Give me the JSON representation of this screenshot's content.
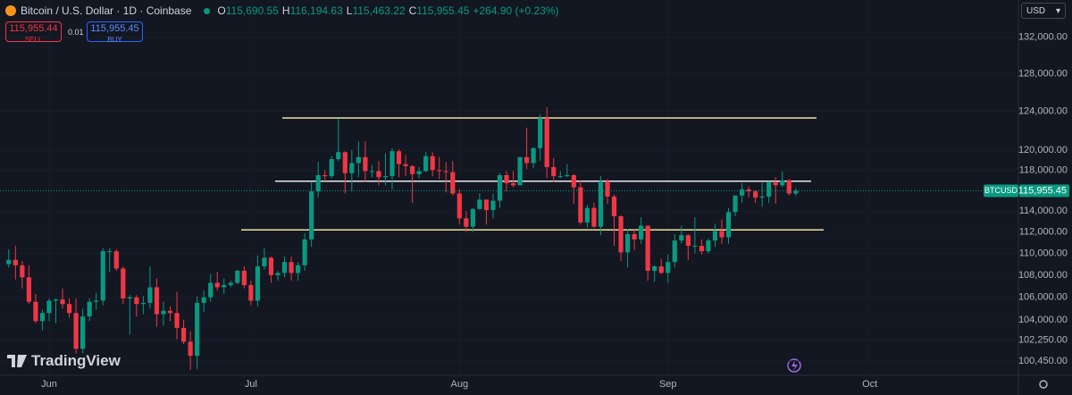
{
  "header": {
    "symbol": "Bitcoin / U.S. Dollar · 1D · Coinbase",
    "ohlc": [
      {
        "label": "O",
        "value": "115,690.55"
      },
      {
        "label": "H",
        "value": "116,194.63"
      },
      {
        "label": "L",
        "value": "115,463.22"
      },
      {
        "label": "C",
        "value": "115,955.45"
      }
    ],
    "change": "+264.90 (+0.23%)"
  },
  "trade": {
    "sell_price": "115,955.44",
    "sell": "SELL",
    "spread": "0.01",
    "buy_price": "115,955.45",
    "buy": "BUY"
  },
  "currency": "USD",
  "brand": "TradingView",
  "chart_data": {
    "type": "candlestick",
    "symbol_label": "BTCUSD",
    "last_price_label": "115,955.45",
    "categories": [
      null,
      null,
      null,
      null,
      null,
      null,
      null,
      "Jun",
      null,
      null,
      null,
      null,
      null,
      null,
      null,
      null,
      null,
      null,
      null,
      null,
      null,
      null,
      null,
      null,
      null,
      null,
      null,
      null,
      null,
      null,
      null,
      null,
      null,
      null,
      null,
      null,
      null,
      "Jul",
      null,
      null,
      null,
      null,
      null,
      null,
      null,
      null,
      null,
      null,
      null,
      null,
      null,
      null,
      null,
      null,
      null,
      null,
      null,
      null,
      null,
      null,
      null,
      null,
      null,
      null,
      null,
      null,
      null,
      null,
      "Aug",
      null,
      null,
      null,
      null,
      null,
      null,
      null,
      null,
      null,
      null,
      null,
      null,
      null,
      null,
      null,
      null,
      null,
      null,
      null,
      null,
      null,
      null,
      null,
      null,
      null,
      null,
      null,
      null,
      null,
      null,
      "Sep",
      null,
      null,
      null,
      null,
      null,
      null,
      null,
      null,
      null,
      null,
      null,
      null,
      null,
      null,
      null,
      null,
      null,
      null,
      null,
      null,
      null,
      null,
      null,
      null,
      null,
      null,
      null,
      null,
      null,
      "Oct",
      null,
      null,
      null,
      null,
      null,
      null,
      null,
      null,
      null,
      null,
      null,
      null,
      null,
      null,
      null,
      null,
      null,
      null,
      null,
      null,
      null
    ],
    "open": [
      null,
      109000,
      109400,
      108900,
      107800,
      105600,
      103900,
      104600,
      105700,
      105800,
      105400,
      104600,
      101500,
      104300,
      105600,
      105700,
      110200,
      110200,
      108600,
      105900,
      106000,
      105400,
      105500,
      106900,
      104500,
      104800,
      104600,
      103300,
      102100,
      100900,
      105500,
      106000,
      107300,
      106900,
      107100,
      107300,
      108400,
      107100,
      105700,
      108800,
      109600,
      108000,
      108200,
      109200,
      108200,
      108900,
      111300,
      115900,
      117500,
      117400,
      119100,
      119800,
      117700,
      118700,
      119300,
      117900,
      117900,
      117300,
      117400,
      119900,
      118600,
      118400,
      117600,
      117900,
      119400,
      118000,
      117900,
      117800,
      115700,
      113300,
      112500,
      114200,
      115100,
      114100,
      115000,
      117500,
      116700,
      116500,
      119300,
      118700,
      120200,
      123300,
      118300,
      117400,
      117400,
      117500,
      116300,
      112900,
      114300,
      112500,
      116900,
      115400,
      113500,
      110100,
      111800,
      111300,
      112600,
      108400,
      108800,
      108200,
      109200,
      111200,
      111700,
      110700,
      110700,
      110200,
      111200,
      112100,
      111500,
      113900,
      115500,
      116100,
      115900,
      115300,
      115400,
      116800,
      116500,
      117000,
      115690.55,
      null,
      null,
      null,
      null,
      null,
      null,
      null,
      null,
      null,
      null,
      null,
      null,
      null,
      null,
      null,
      null,
      null,
      null,
      null,
      null,
      null,
      null,
      null,
      null,
      null,
      null,
      null,
      null,
      null,
      null,
      null,
      null
    ],
    "high": [
      null,
      110400,
      110700,
      109300,
      108900,
      106300,
      104900,
      105900,
      105900,
      106800,
      105900,
      105900,
      105000,
      105900,
      106400,
      110500,
      110500,
      110400,
      108800,
      106200,
      106200,
      106100,
      108800,
      107700,
      105600,
      105200,
      106500,
      104000,
      103000,
      106100,
      106600,
      108100,
      108300,
      107700,
      107500,
      108500,
      108800,
      107500,
      109800,
      110500,
      109700,
      108400,
      109700,
      109700,
      109200,
      111900,
      116800,
      118800,
      118000,
      119400,
      123200,
      119900,
      120000,
      120900,
      120900,
      118500,
      118900,
      119700,
      120200,
      120100,
      119500,
      118500,
      118300,
      119800,
      119800,
      119300,
      118800,
      118900,
      116100,
      114000,
      114300,
      115700,
      115100,
      115700,
      117700,
      117900,
      117900,
      119300,
      122300,
      120300,
      123700,
      124400,
      119200,
      117900,
      118600,
      117600,
      117000,
      114600,
      114800,
      117400,
      117100,
      115600,
      113600,
      112300,
      112300,
      113400,
      112600,
      108900,
      109500,
      109900,
      111800,
      112600,
      111800,
      113400,
      111300,
      111400,
      112800,
      113200,
      114300,
      115500,
      116700,
      116400,
      116000,
      116800,
      116900,
      117300,
      117900,
      117100,
      116194.63,
      null,
      null,
      null,
      null,
      null,
      null,
      null,
      null,
      null,
      null,
      null,
      null,
      null,
      null,
      null,
      null,
      null,
      null,
      null,
      null,
      null,
      null,
      null,
      null,
      null,
      null,
      null,
      null,
      null,
      null,
      null,
      null
    ],
    "low": [
      null,
      108700,
      107600,
      106800,
      105400,
      103700,
      103100,
      103900,
      103700,
      105000,
      104200,
      101100,
      101100,
      103900,
      104900,
      105300,
      108300,
      108400,
      105400,
      102700,
      104300,
      104500,
      105000,
      103400,
      103500,
      103900,
      102300,
      101900,
      99700,
      99800,
      104700,
      105600,
      106600,
      106300,
      106900,
      107200,
      106800,
      105300,
      105200,
      108500,
      107300,
      107500,
      107800,
      107500,
      107500,
      108400,
      110600,
      115300,
      116900,
      117200,
      118900,
      115700,
      115900,
      117300,
      116800,
      117300,
      116500,
      116500,
      116100,
      117300,
      117400,
      114800,
      117200,
      117800,
      117400,
      117100,
      115800,
      115500,
      112700,
      112000,
      112000,
      114100,
      112700,
      113300,
      114300,
      115900,
      116300,
      116500,
      118100,
      118200,
      118900,
      117200,
      116800,
      117200,
      117300,
      114700,
      112700,
      112400,
      112400,
      111700,
      114700,
      110700,
      109300,
      108700,
      110300,
      110900,
      107500,
      107400,
      108100,
      107300,
      108700,
      110900,
      109400,
      110000,
      109900,
      110000,
      110600,
      110900,
      110900,
      113500,
      114800,
      115300,
      114800,
      114400,
      114800,
      114700,
      116300,
      115500,
      115463.22,
      null,
      null,
      null,
      null,
      null,
      null,
      null,
      null,
      null,
      null,
      null,
      null,
      null,
      null,
      null,
      null,
      null,
      null,
      null,
      null,
      null,
      null,
      null,
      null,
      null,
      null,
      null,
      null,
      null,
      null,
      null,
      null
    ],
    "close": [
      null,
      109400,
      108900,
      107800,
      105600,
      103900,
      104600,
      105700,
      105800,
      105400,
      104600,
      101500,
      104300,
      105600,
      105700,
      110200,
      110200,
      108600,
      105900,
      106000,
      105400,
      105500,
      106900,
      104500,
      104800,
      104600,
      103300,
      102100,
      100900,
      105500,
      106000,
      107300,
      106900,
      107100,
      107300,
      108400,
      107100,
      105700,
      108800,
      109600,
      108000,
      108200,
      109200,
      108200,
      108900,
      111300,
      115900,
      117500,
      117400,
      119100,
      119800,
      117700,
      118700,
      119300,
      117900,
      117900,
      117300,
      117400,
      119900,
      118600,
      118400,
      117600,
      117900,
      119400,
      118000,
      117900,
      117800,
      115700,
      113300,
      112500,
      114200,
      115100,
      114100,
      115000,
      117500,
      116700,
      116500,
      119300,
      118700,
      120200,
      123300,
      118300,
      117400,
      117400,
      117500,
      116300,
      112900,
      114300,
      112500,
      116900,
      115400,
      113500,
      110100,
      111800,
      111300,
      112600,
      108400,
      108800,
      108200,
      109200,
      111200,
      111700,
      110700,
      110700,
      110200,
      111200,
      112100,
      111500,
      113900,
      115500,
      116100,
      115900,
      115300,
      115400,
      116800,
      116500,
      117000,
      115700,
      115955.45,
      null,
      null,
      null,
      null,
      null,
      null,
      null,
      null,
      null,
      null,
      null,
      null,
      null,
      null,
      null,
      null,
      null,
      null,
      null,
      null,
      null,
      null,
      null,
      null,
      null,
      null,
      null,
      null,
      null,
      null,
      null,
      null
    ],
    "up_color": "#089981",
    "down_color": "#f23645",
    "log_scale": true,
    "grid": true,
    "ylim": [
      99250,
      136200
    ],
    "yticks": [
      {
        "value": 100450,
        "label": "100,450.00"
      },
      {
        "value": 102250,
        "label": "102,250.00"
      },
      {
        "value": 104000,
        "label": "104,000.00"
      },
      {
        "value": 106000,
        "label": "106,000.00"
      },
      {
        "value": 108000,
        "label": "108,000.00"
      },
      {
        "value": 110000,
        "label": "110,000.00"
      },
      {
        "value": 112000,
        "label": "112,000.00"
      },
      {
        "value": 114000,
        "label": "114,000.00"
      },
      {
        "value": 118000,
        "label": "118,000.00"
      },
      {
        "value": 120000,
        "label": "120,000.00"
      },
      {
        "value": 124000,
        "label": "124,000.00"
      },
      {
        "value": 128000,
        "label": "128,000.00"
      },
      {
        "value": 132000,
        "label": "132,000.00"
      }
    ],
    "levels": [
      {
        "value": 123300,
        "color": "#efe29a"
      },
      {
        "value": 116900,
        "color": "#e8eaf0"
      },
      {
        "value": 112200,
        "color": "#efe29a"
      }
    ]
  }
}
